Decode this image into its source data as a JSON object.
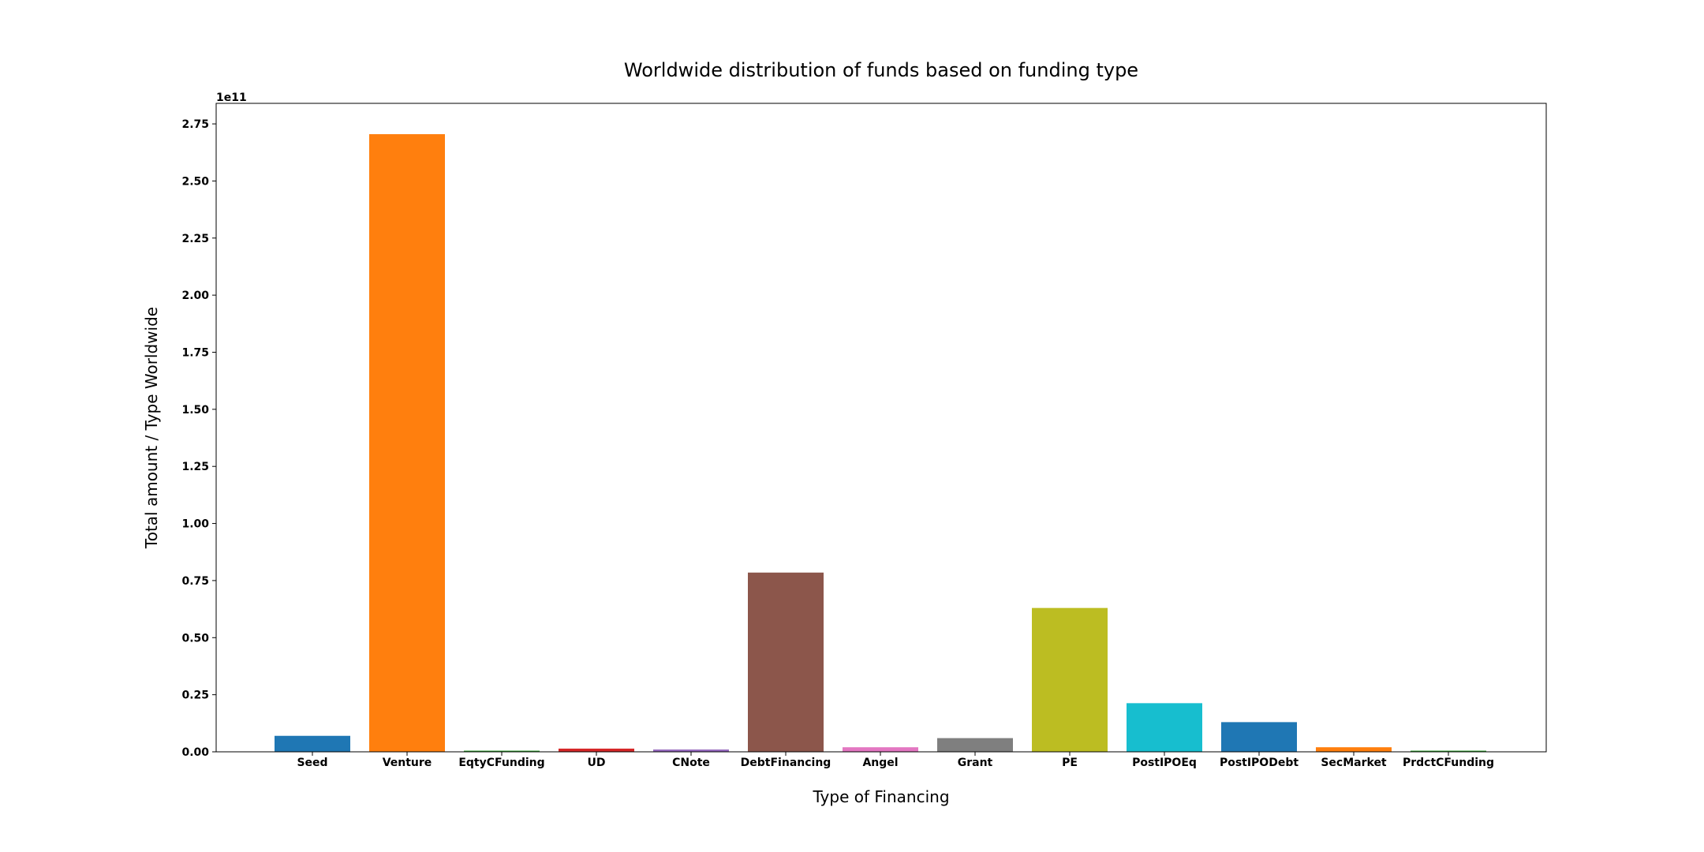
{
  "chart_data": {
    "type": "bar",
    "title": "Worldwide distribution of funds based on funding type",
    "xlabel": "Type of Financing",
    "ylabel": "Total amount / Type Worldwide",
    "y_offset_label": "1e11",
    "ylim": [
      0,
      2.84
    ],
    "yticks": [
      "0.00",
      "0.25",
      "0.50",
      "0.75",
      "1.00",
      "1.25",
      "1.50",
      "1.75",
      "2.00",
      "2.25",
      "2.50",
      "2.75"
    ],
    "categories": [
      "Seed",
      "Venture",
      "EqtyCFunding",
      "UD",
      "CNote",
      "DebtFinancing",
      "Angel",
      "Grant",
      "PE",
      "PostIPOEq",
      "PostIPODebt",
      "SecMarket",
      "PrdctCFunding"
    ],
    "values": [
      0.07,
      2.705,
      0.005,
      0.014,
      0.01,
      0.785,
      0.02,
      0.06,
      0.63,
      0.213,
      0.13,
      0.02,
      0.005
    ],
    "colors": [
      "#1f77b4",
      "#ff7f0e",
      "#2ca02c",
      "#d62728",
      "#9467bd",
      "#8c564b",
      "#e377c2",
      "#7f7f7f",
      "#bcbd22",
      "#17becf",
      "#1f77b4",
      "#ff7f0e",
      "#2ca02c"
    ],
    "grid": false,
    "legend": "none"
  }
}
